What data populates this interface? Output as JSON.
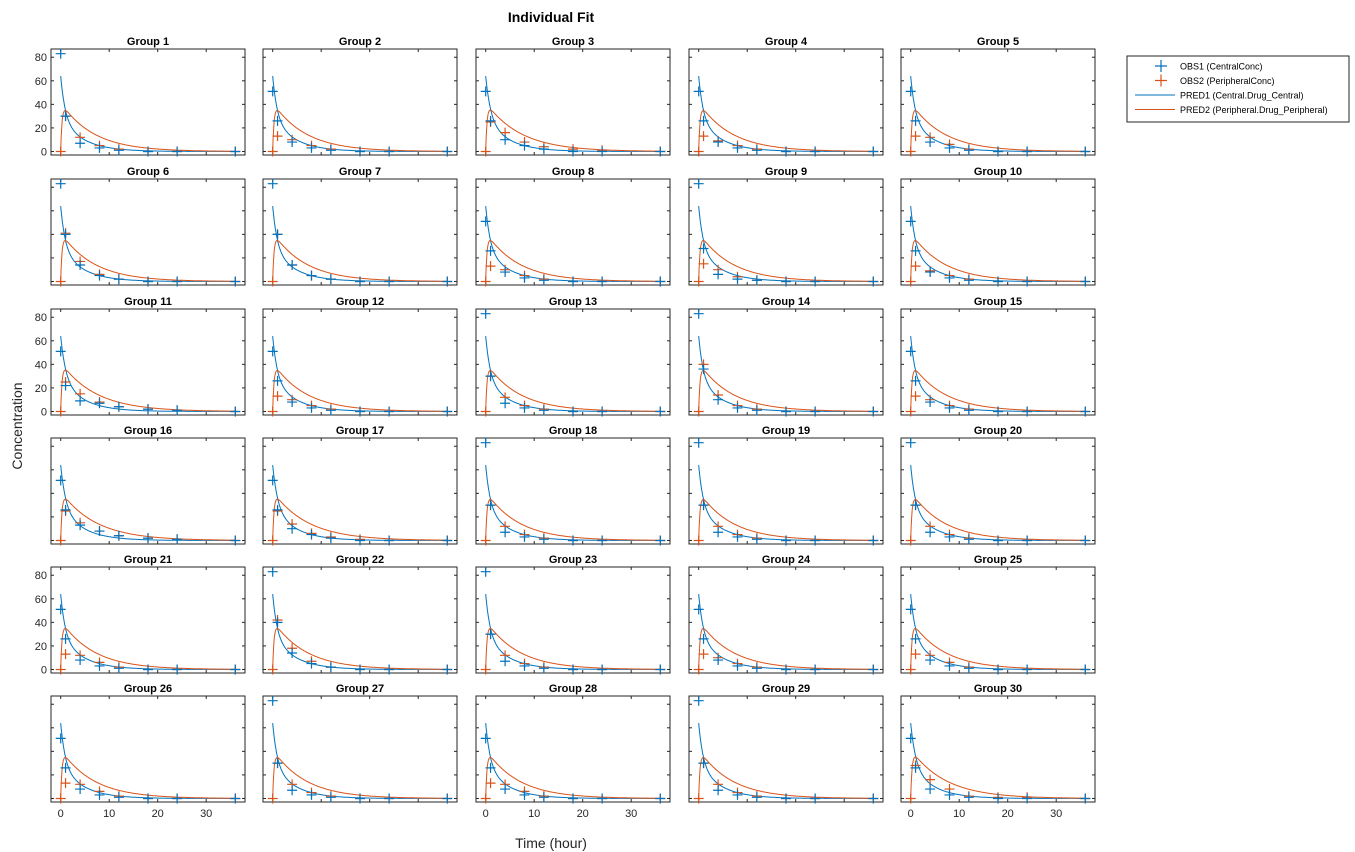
{
  "title": "Individual Fit",
  "xlabel": "Time (hour)",
  "ylabel": "Concentration",
  "colors": {
    "obs1": "#0072BD",
    "obs2": "#D95319",
    "pred1": "#0072BD",
    "pred2": "#D95319",
    "axes": "#262626"
  },
  "legend": {
    "placement": "outside-right",
    "entries": [
      {
        "label": "OBS1 (CentralConc)",
        "marker": "plus",
        "color": "#0072BD"
      },
      {
        "label": "OBS2 (PeripheralConc)",
        "marker": "plus",
        "color": "#D95319"
      },
      {
        "label": "PRED1 (Central.Drug_Central)",
        "marker": "line",
        "color": "#0072BD"
      },
      {
        "label": "PRED2 (Peripheral.Drug_Peripheral)",
        "marker": "line",
        "color": "#D95319"
      }
    ]
  },
  "chart_data": {
    "type": "scatter",
    "layout": "small-multiples",
    "rows": 6,
    "cols": 5,
    "xlim": [
      -2,
      38
    ],
    "ylim": [
      -3,
      87
    ],
    "xticks": [
      0,
      10,
      20,
      30
    ],
    "yticks": [
      0,
      20,
      40,
      60,
      80
    ],
    "times": [
      0,
      1,
      4,
      8,
      12,
      18,
      24,
      36
    ],
    "grid": false,
    "panels": [
      {
        "title": "Group 1",
        "obs1": [
          83,
          30,
          7,
          3,
          1,
          0,
          0,
          0
        ],
        "obs2": [
          0,
          30,
          12,
          5,
          2,
          0,
          0,
          0
        ],
        "pred1": [
          64,
          1.1
        ],
        "pred2": [
          27,
          0.15
        ]
      },
      {
        "title": "Group 2",
        "obs1": [
          51,
          26,
          8,
          3,
          1,
          0,
          0,
          0
        ],
        "obs2": [
          0,
          13,
          10,
          5,
          2,
          0,
          0,
          0
        ],
        "pred1": [
          64,
          1.1
        ],
        "pred2": [
          27,
          0.15
        ]
      },
      {
        "title": "Group 3",
        "obs1": [
          51,
          26,
          10,
          5,
          2,
          0,
          0,
          0
        ],
        "obs2": [
          0,
          25,
          16,
          8,
          4,
          2,
          1,
          0
        ],
        "pred1": [
          64,
          1.0
        ],
        "pred2": [
          27,
          0.14
        ]
      },
      {
        "title": "Group 4",
        "obs1": [
          51,
          26,
          8,
          3,
          1,
          0,
          0,
          0
        ],
        "obs2": [
          0,
          13,
          9,
          5,
          2,
          0,
          0,
          0
        ],
        "pred1": [
          64,
          1.1
        ],
        "pred2": [
          27,
          0.15
        ]
      },
      {
        "title": "Group 5",
        "obs1": [
          51,
          26,
          8,
          3,
          1,
          0,
          0,
          0
        ],
        "obs2": [
          0,
          13,
          12,
          6,
          2,
          0,
          0,
          0
        ],
        "pred1": [
          64,
          1.1
        ],
        "pred2": [
          27,
          0.15
        ]
      },
      {
        "title": "Group 6",
        "obs1": [
          83,
          40,
          14,
          5,
          2,
          0,
          0,
          0
        ],
        "obs2": [
          0,
          41,
          17,
          6,
          2,
          0,
          0,
          0
        ],
        "pred1": [
          64,
          1.1
        ],
        "pred2": [
          27,
          0.15
        ]
      },
      {
        "title": "Group 7",
        "obs1": [
          83,
          40,
          14,
          5,
          2,
          0,
          0,
          0
        ],
        "obs2": [
          0,
          40,
          14,
          5,
          2,
          0,
          0,
          0
        ],
        "pred1": [
          64,
          1.1
        ],
        "pred2": [
          27,
          0.15
        ]
      },
      {
        "title": "Group 8",
        "obs1": [
          51,
          26,
          8,
          3,
          1,
          0,
          0,
          0
        ],
        "obs2": [
          0,
          13,
          10,
          5,
          2,
          0,
          0,
          0
        ],
        "pred1": [
          64,
          1.1
        ],
        "pred2": [
          27,
          0.15
        ]
      },
      {
        "title": "Group 9",
        "obs1": [
          83,
          28,
          6,
          2,
          1,
          0,
          0,
          0
        ],
        "obs2": [
          0,
          15,
          10,
          4,
          1,
          0,
          0,
          0
        ],
        "pred1": [
          64,
          1.1
        ],
        "pred2": [
          27,
          0.15
        ]
      },
      {
        "title": "Group 10",
        "obs1": [
          51,
          26,
          8,
          3,
          1,
          0,
          0,
          0
        ],
        "obs2": [
          0,
          13,
          9,
          5,
          2,
          0,
          0,
          0
        ],
        "pred1": [
          64,
          1.1
        ],
        "pred2": [
          27,
          0.15
        ]
      },
      {
        "title": "Group 11",
        "obs1": [
          51,
          22,
          9,
          7,
          4,
          2,
          1,
          0
        ],
        "obs2": [
          0,
          25,
          15,
          8,
          4,
          2,
          1,
          0
        ],
        "pred1": [
          64,
          1.0
        ],
        "pred2": [
          27,
          0.14
        ]
      },
      {
        "title": "Group 12",
        "obs1": [
          51,
          26,
          8,
          3,
          1,
          0,
          0,
          0
        ],
        "obs2": [
          0,
          13,
          10,
          5,
          2,
          0,
          0,
          0
        ],
        "pred1": [
          64,
          1.1
        ],
        "pred2": [
          27,
          0.15
        ]
      },
      {
        "title": "Group 13",
        "obs1": [
          83,
          30,
          7,
          3,
          1,
          0,
          0,
          0
        ],
        "obs2": [
          0,
          30,
          12,
          5,
          2,
          0,
          0,
          0
        ],
        "pred1": [
          64,
          1.1
        ],
        "pred2": [
          27,
          0.15
        ]
      },
      {
        "title": "Group 14",
        "obs1": [
          83,
          36,
          10,
          3,
          1,
          0,
          0,
          0
        ],
        "obs2": [
          0,
          40,
          14,
          5,
          2,
          0,
          0,
          0
        ],
        "pred1": [
          64,
          1.1
        ],
        "pred2": [
          27,
          0.15
        ]
      },
      {
        "title": "Group 15",
        "obs1": [
          51,
          26,
          8,
          3,
          1,
          0,
          0,
          0
        ],
        "obs2": [
          0,
          13,
          10,
          5,
          2,
          0,
          0,
          0
        ],
        "pred1": [
          64,
          1.1
        ],
        "pred2": [
          27,
          0.15
        ]
      },
      {
        "title": "Group 16",
        "obs1": [
          51,
          26,
          13,
          8,
          4,
          2,
          1,
          0
        ],
        "obs2": [
          0,
          25,
          15,
          8,
          4,
          2,
          1,
          0
        ],
        "pred1": [
          64,
          1.0
        ],
        "pred2": [
          27,
          0.14
        ]
      },
      {
        "title": "Group 17",
        "obs1": [
          51,
          26,
          10,
          5,
          2,
          0,
          0,
          0
        ],
        "obs2": [
          0,
          25,
          14,
          6,
          3,
          1,
          0,
          0
        ],
        "pred1": [
          64,
          1.0
        ],
        "pred2": [
          27,
          0.14
        ]
      },
      {
        "title": "Group 18",
        "obs1": [
          83,
          30,
          7,
          3,
          1,
          0,
          0,
          0
        ],
        "obs2": [
          0,
          30,
          12,
          5,
          2,
          0,
          0,
          0
        ],
        "pred1": [
          64,
          1.1
        ],
        "pred2": [
          27,
          0.15
        ]
      },
      {
        "title": "Group 19",
        "obs1": [
          83,
          30,
          7,
          3,
          1,
          0,
          0,
          0
        ],
        "obs2": [
          0,
          30,
          12,
          5,
          2,
          0,
          0,
          0
        ],
        "pred1": [
          64,
          1.1
        ],
        "pred2": [
          27,
          0.15
        ]
      },
      {
        "title": "Group 20",
        "obs1": [
          83,
          30,
          7,
          3,
          1,
          0,
          0,
          0
        ],
        "obs2": [
          0,
          30,
          12,
          5,
          2,
          0,
          0,
          0
        ],
        "pred1": [
          64,
          1.1
        ],
        "pred2": [
          27,
          0.15
        ]
      },
      {
        "title": "Group 21",
        "obs1": [
          51,
          26,
          8,
          3,
          1,
          0,
          0,
          0
        ],
        "obs2": [
          0,
          13,
          12,
          6,
          2,
          0,
          0,
          0
        ],
        "pred1": [
          64,
          1.1
        ],
        "pred2": [
          27,
          0.15
        ]
      },
      {
        "title": "Group 22",
        "obs1": [
          83,
          40,
          14,
          5,
          2,
          0,
          0,
          0
        ],
        "obs2": [
          0,
          42,
          18,
          7,
          2,
          0,
          0,
          0
        ],
        "pred1": [
          64,
          1.1
        ],
        "pred2": [
          27,
          0.15
        ]
      },
      {
        "title": "Group 23",
        "obs1": [
          83,
          30,
          7,
          3,
          1,
          0,
          0,
          0
        ],
        "obs2": [
          0,
          30,
          12,
          5,
          2,
          0,
          0,
          0
        ],
        "pred1": [
          64,
          1.1
        ],
        "pred2": [
          27,
          0.15
        ]
      },
      {
        "title": "Group 24",
        "obs1": [
          51,
          26,
          8,
          3,
          1,
          0,
          0,
          0
        ],
        "obs2": [
          0,
          13,
          10,
          5,
          2,
          0,
          0,
          0
        ],
        "pred1": [
          64,
          1.1
        ],
        "pred2": [
          27,
          0.15
        ]
      },
      {
        "title": "Group 25",
        "obs1": [
          51,
          26,
          8,
          3,
          1,
          0,
          0,
          0
        ],
        "obs2": [
          0,
          13,
          12,
          6,
          2,
          0,
          0,
          0
        ],
        "pred1": [
          64,
          1.1
        ],
        "pred2": [
          27,
          0.15
        ]
      },
      {
        "title": "Group 26",
        "obs1": [
          51,
          26,
          8,
          3,
          1,
          0,
          0,
          0
        ],
        "obs2": [
          0,
          13,
          12,
          6,
          2,
          0,
          0,
          0
        ],
        "pred1": [
          64,
          1.1
        ],
        "pred2": [
          27,
          0.15
        ]
      },
      {
        "title": "Group 27",
        "obs1": [
          83,
          30,
          7,
          3,
          1,
          0,
          0,
          0
        ],
        "obs2": [
          0,
          30,
          12,
          5,
          2,
          0,
          0,
          0
        ],
        "pred1": [
          64,
          1.1
        ],
        "pred2": [
          27,
          0.15
        ]
      },
      {
        "title": "Group 28",
        "obs1": [
          51,
          26,
          8,
          3,
          1,
          0,
          0,
          0
        ],
        "obs2": [
          0,
          13,
          12,
          6,
          2,
          0,
          0,
          0
        ],
        "pred1": [
          64,
          1.1
        ],
        "pred2": [
          27,
          0.15
        ]
      },
      {
        "title": "Group 29",
        "obs1": [
          83,
          30,
          7,
          3,
          1,
          0,
          0,
          0
        ],
        "obs2": [
          0,
          30,
          12,
          5,
          2,
          0,
          0,
          0
        ],
        "pred1": [
          64,
          1.1
        ],
        "pred2": [
          27,
          0.15
        ]
      },
      {
        "title": "Group 30",
        "obs1": [
          51,
          26,
          8,
          3,
          1,
          0,
          0,
          0
        ],
        "obs2": [
          0,
          28,
          16,
          8,
          2,
          1,
          1,
          0
        ],
        "pred1": [
          64,
          1.0
        ],
        "pred2": [
          27,
          0.14
        ]
      }
    ]
  }
}
